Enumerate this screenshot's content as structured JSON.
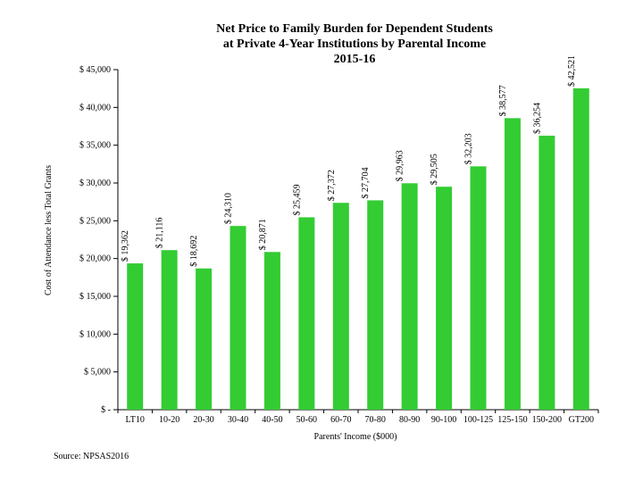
{
  "chart_data": {
    "type": "bar",
    "title_lines": [
      "Net Price to Family Burden for Dependent Students",
      "at Private 4-Year Institutions by Parental Income",
      "2015-16"
    ],
    "xlabel": "Parents' Income ($000)",
    "ylabel": "Cost of Attendance less Total Grants",
    "source": "Source: NPSAS2016",
    "categories": [
      "LT10",
      "10-20",
      "20-30",
      "30-40",
      "40-50",
      "50-60",
      "60-70",
      "70-80",
      "80-90",
      "90-100",
      "100-125",
      "125-150",
      "150-200",
      "GT200"
    ],
    "values": [
      19362,
      21116,
      18692,
      24310,
      20871,
      25459,
      27372,
      27704,
      29963,
      29505,
      32203,
      38577,
      36254,
      42521
    ],
    "data_labels": [
      "$ 19,362",
      "$ 21,116",
      "$ 18,692",
      "$ 24,310",
      "$ 20,871",
      "$ 25,459",
      "$ 27,372",
      "$ 27,704",
      "$ 29,963",
      "$ 29,505",
      "$ 32,203",
      "$ 38,577",
      "$ 36,254",
      "$ 42,521"
    ],
    "ylim": [
      0,
      45000
    ],
    "yticks": [
      0,
      5000,
      10000,
      15000,
      20000,
      25000,
      30000,
      35000,
      40000,
      45000
    ],
    "ytick_labels": [
      "$ -",
      "$ 5,000",
      "$ 10,000",
      "$ 15,000",
      "$ 20,000",
      "$ 25,000",
      "$ 30,000",
      "$ 35,000",
      "$ 40,000",
      "$ 45,000"
    ],
    "bar_color": "#33cc33",
    "grid": false,
    "legend": "none"
  }
}
